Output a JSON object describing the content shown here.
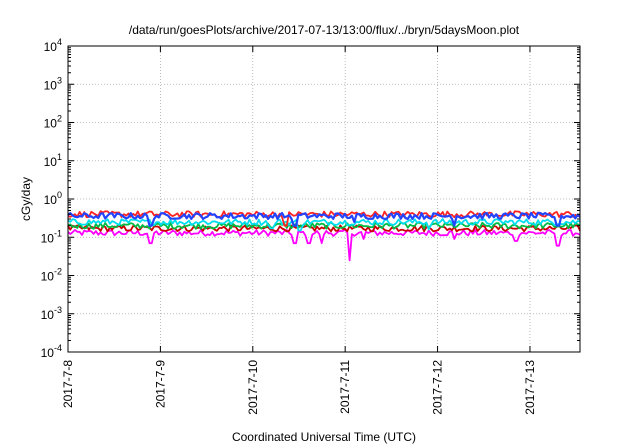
{
  "chart_data": {
    "type": "line",
    "title": "/data/run/goesPlots/archive/2017-07-13/13:00/flux/../bryn/5daysMoon.plot",
    "xlabel": "Coordinated Universal Time (UTC)",
    "ylabel": "cGy/day",
    "yscale": "log",
    "ylim": [
      0.0001,
      10000
    ],
    "ytick_exponents": [
      -4,
      -3,
      -2,
      -1,
      0,
      1,
      2,
      3,
      4
    ],
    "xlim": [
      "2017-07-08 00:00",
      "2017-07-13 13:00"
    ],
    "xticks": [
      "2017-7-8",
      "2017-7-9",
      "2017-7-10",
      "2017-7-11",
      "2017-7-12",
      "2017-7-13"
    ],
    "grid": true,
    "series": [
      {
        "color": "#ff00ff",
        "level": 0.13,
        "dips": [
          [
            0.9,
            0.07
          ],
          [
            2.45,
            0.07
          ],
          [
            2.6,
            0.07
          ],
          [
            2.75,
            0.07
          ],
          [
            3.05,
            0.025
          ],
          [
            3.2,
            0.09
          ],
          [
            4.18,
            0.09
          ],
          [
            4.85,
            0.08
          ],
          [
            5.3,
            0.06
          ]
        ]
      },
      {
        "color": "#cc0000",
        "level": 0.17,
        "dips": []
      },
      {
        "color": "#00bb44",
        "level": 0.2,
        "dips": []
      },
      {
        "color": "#00ddee",
        "level": 0.25,
        "dips": [
          [
            2.2,
            0.17
          ],
          [
            2.5,
            0.15
          ],
          [
            3.9,
            0.16
          ]
        ]
      },
      {
        "color": "#ff2222",
        "level": 0.4,
        "dips": [
          [
            2.35,
            0.2
          ]
        ]
      },
      {
        "color": "#2244ff",
        "level": 0.36,
        "dips": [
          [
            0.9,
            0.2
          ],
          [
            2.45,
            0.2
          ],
          [
            3.1,
            0.25
          ],
          [
            4.18,
            0.2
          ],
          [
            5.3,
            0.2
          ]
        ]
      }
    ]
  }
}
